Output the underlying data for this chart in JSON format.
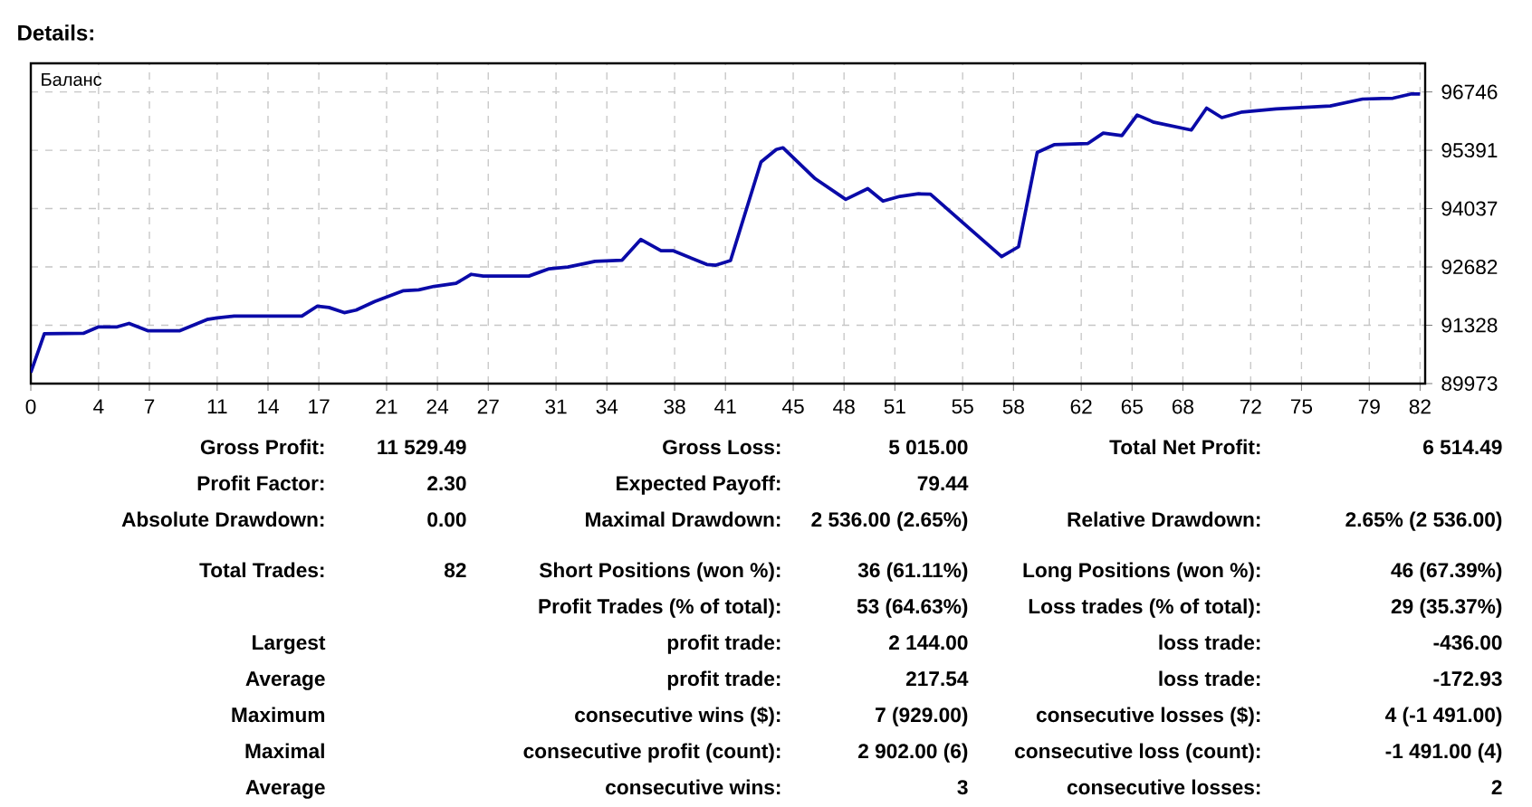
{
  "chart_data": {
    "type": "line",
    "title": "Details:",
    "x": [
      0,
      0.8,
      3.1,
      4.0,
      5.1,
      5.8,
      6.9,
      8.8,
      10.4,
      11.0,
      12.0,
      16.0,
      16.9,
      17.6,
      18.5,
      19.2,
      20.3,
      22.0,
      22.9,
      23.8,
      25.1,
      26.0,
      26.7,
      29.4,
      30.6,
      31.7,
      32.8,
      33.3,
      34.9,
      36.0,
      37.2,
      37.9,
      39.9,
      40.4,
      41.3,
      43.1,
      44.0,
      44.4,
      46.3,
      48.1,
      49.4,
      50.3,
      51.3,
      52.4,
      53.1,
      57.3,
      58.3,
      59.4,
      60.4,
      62.4,
      63.3,
      64.4,
      65.3,
      66.3,
      68.5,
      69.4,
      70.3,
      71.5,
      73.5,
      76.7,
      78.6,
      80.4,
      81.5,
      82
    ],
    "series": [
      {
        "name": "Баланс",
        "color": "#0a0aa8",
        "values": [
          90230,
          91130,
          91140,
          91290,
          91290,
          91370,
          91200,
          91200,
          91460,
          91500,
          91540,
          91540,
          91770,
          91740,
          91620,
          91680,
          91880,
          92130,
          92150,
          92230,
          92300,
          92510,
          92470,
          92470,
          92640,
          92680,
          92770,
          92810,
          92840,
          93320,
          93060,
          93060,
          92740,
          92720,
          92830,
          95120,
          95410,
          95450,
          94730,
          94250,
          94500,
          94210,
          94320,
          94380,
          94370,
          92920,
          93150,
          95340,
          95520,
          95550,
          95790,
          95730,
          96210,
          96040,
          95860,
          96370,
          96150,
          96280,
          96350,
          96420,
          96580,
          96600,
          96700,
          96700
        ]
      }
    ],
    "xlim": [
      0,
      82.3
    ],
    "ylim": [
      89973,
      97410
    ],
    "xticks": [
      0,
      4,
      7,
      11,
      14,
      17,
      21,
      24,
      27,
      31,
      34,
      38,
      41,
      45,
      48,
      51,
      55,
      58,
      62,
      65,
      68,
      72,
      75,
      79,
      82
    ],
    "yticks": [
      89973,
      91328,
      92682,
      94037,
      95391,
      96746
    ],
    "grid": true,
    "line_style": "solid",
    "annotations": [
      "Gross Profit:",
      "11 529.49",
      "Gross Loss:",
      "5 015.00",
      "Total Net Profit:",
      "6 514.49",
      "Profit Factor:",
      "2.30",
      "Expected Payoff:",
      "79.44",
      "Absolute Drawdown:",
      "0.00",
      "Maximal Drawdown:",
      "2 536.00 (2.65%)",
      "Relative Drawdown:",
      "2.65% (2 536.00)",
      "Total Trades:",
      "82",
      "Short Positions (won %):",
      "36 (61.11%)",
      "Long Positions (won %):",
      "46 (67.39%)",
      "Profit Trades (% of total):",
      "53 (64.63%)",
      "Loss trades (% of total):",
      "29 (35.37%)",
      "Largest",
      "profit trade:",
      "2 144.00",
      "loss trade:",
      "-436.00",
      "Average",
      "profit trade:",
      "217.54",
      "loss trade:",
      "-172.93",
      "Maximum",
      "consecutive wins ($):",
      "7 (929.00)",
      "consecutive losses ($):",
      "4 (-1 491.00)",
      "Maximal",
      "consecutive profit (count):",
      "2 902.00 (6)",
      "consecutive loss (count):",
      "-1 491.00 (4)",
      "Average",
      "consecutive wins:",
      "3",
      "consecutive losses:",
      "2"
    ]
  }
}
